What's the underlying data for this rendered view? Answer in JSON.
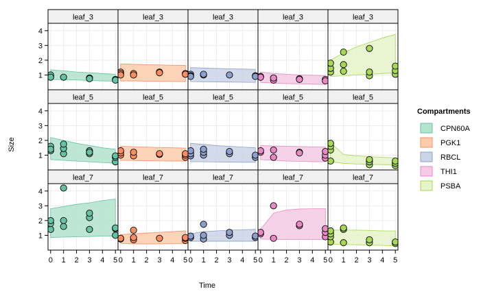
{
  "chart_data": {
    "type": "scatter",
    "xlabel": "Time",
    "ylabel": "Size",
    "xlim": [
      -0.2,
      5.2
    ],
    "ylim": [
      0,
      4.5
    ],
    "x_ticks": [
      0,
      1,
      2,
      3,
      4,
      5
    ],
    "y_ticks": [
      1,
      2,
      3,
      4
    ],
    "grid": true,
    "rows": [
      "leaf_3",
      "leaf_5",
      "leaf_7"
    ],
    "columns": [
      "CPN60A",
      "PGK1",
      "RBCL",
      "THI1",
      "PSBA"
    ],
    "legend": {
      "title": "Compartments",
      "position": "right",
      "items": [
        {
          "label": "CPN60A",
          "fill": "#b3e2cd",
          "stroke": "#66c2a5"
        },
        {
          "label": "PGK1",
          "fill": "#fdcdac",
          "stroke": "#fc8d62"
        },
        {
          "label": "RBCL",
          "fill": "#cbd5e8",
          "stroke": "#8da0cb"
        },
        {
          "label": "THI1",
          "fill": "#f4cae4",
          "stroke": "#e78ac3"
        },
        {
          "label": "PSBA",
          "fill": "#e6f5c9",
          "stroke": "#a6d854"
        }
      ]
    },
    "point_colors": [
      "#66c2a5",
      "#fc8d62",
      "#8da0cb",
      "#e78ac3",
      "#a6d854"
    ],
    "panels": [
      {
        "row": 0,
        "col": 0,
        "points": [
          [
            0,
            0.9
          ],
          [
            0,
            1.0
          ],
          [
            0,
            0.85
          ],
          [
            1,
            0.85
          ],
          [
            3,
            0.8
          ],
          [
            3,
            0.75
          ],
          [
            5,
            0.7
          ],
          [
            5,
            0.65
          ]
        ],
        "band": [
          [
            0,
            0.7,
            1.35
          ],
          [
            1,
            0.68,
            1.28
          ],
          [
            2,
            0.66,
            1.2
          ],
          [
            3,
            0.63,
            1.15
          ],
          [
            4,
            0.6,
            1.1
          ],
          [
            5,
            0.58,
            1.05
          ]
        ]
      },
      {
        "row": 0,
        "col": 1,
        "points": [
          [
            0,
            1.2
          ],
          [
            0,
            1.1
          ],
          [
            0,
            1.0
          ],
          [
            1,
            1.1
          ],
          [
            1,
            1.0
          ],
          [
            3,
            1.2
          ],
          [
            3,
            1.15
          ],
          [
            5,
            1.1
          ],
          [
            5,
            1.05
          ]
        ],
        "band": [
          [
            0,
            0.6,
            1.75
          ],
          [
            1,
            0.6,
            1.72
          ],
          [
            2,
            0.58,
            1.7
          ],
          [
            3,
            0.57,
            1.68
          ],
          [
            4,
            0.56,
            1.66
          ],
          [
            5,
            0.55,
            1.65
          ]
        ]
      },
      {
        "row": 0,
        "col": 2,
        "points": [
          [
            0,
            1.05
          ],
          [
            0,
            0.95
          ],
          [
            0,
            0.9
          ],
          [
            1,
            1.0
          ],
          [
            1,
            1.05
          ],
          [
            3,
            1.0
          ],
          [
            5,
            0.95
          ],
          [
            5,
            0.9
          ]
        ],
        "band": [
          [
            0,
            0.55,
            1.5
          ],
          [
            1,
            0.54,
            1.47
          ],
          [
            2,
            0.53,
            1.44
          ],
          [
            3,
            0.52,
            1.42
          ],
          [
            4,
            0.51,
            1.4
          ],
          [
            5,
            0.5,
            1.38
          ]
        ]
      },
      {
        "row": 0,
        "col": 3,
        "points": [
          [
            0,
            0.9
          ],
          [
            0,
            0.85
          ],
          [
            1,
            0.65
          ],
          [
            1,
            0.8
          ],
          [
            3,
            0.75
          ],
          [
            3,
            0.7
          ],
          [
            5,
            0.7
          ],
          [
            5,
            0.6
          ]
        ],
        "band": [
          [
            0,
            0.5,
            1.2
          ],
          [
            1,
            0.45,
            1.1
          ],
          [
            2,
            0.42,
            1.05
          ],
          [
            3,
            0.4,
            1.0
          ],
          [
            4,
            0.38,
            0.98
          ],
          [
            5,
            0.36,
            0.95
          ]
        ]
      },
      {
        "row": 0,
        "col": 4,
        "points": [
          [
            0,
            1.2
          ],
          [
            0,
            1.45
          ],
          [
            0,
            1.8
          ],
          [
            1,
            1.25
          ],
          [
            1,
            1.7
          ],
          [
            1,
            2.55
          ],
          [
            3,
            0.95
          ],
          [
            3,
            1.2
          ],
          [
            3,
            2.8
          ],
          [
            5,
            1.05
          ],
          [
            5,
            1.3
          ],
          [
            5,
            1.6
          ]
        ],
        "band": [
          [
            0,
            0.9,
            2.0
          ],
          [
            1,
            0.95,
            2.5
          ],
          [
            2,
            1.0,
            2.9
          ],
          [
            3,
            1.05,
            3.2
          ],
          [
            4,
            1.1,
            3.5
          ],
          [
            5,
            1.15,
            3.75
          ]
        ]
      },
      {
        "row": 1,
        "col": 0,
        "points": [
          [
            0,
            1.3
          ],
          [
            0,
            1.6
          ],
          [
            0,
            1.4
          ],
          [
            1,
            1.1
          ],
          [
            1,
            1.45
          ],
          [
            1,
            1.75
          ],
          [
            3,
            1.1
          ],
          [
            3,
            1.3
          ],
          [
            3,
            1.2
          ],
          [
            5,
            0.55
          ],
          [
            5,
            0.85
          ],
          [
            5,
            0.95
          ]
        ],
        "band": [
          [
            0,
            0.7,
            2.2
          ],
          [
            1,
            0.65,
            2.0
          ],
          [
            2,
            0.6,
            1.8
          ],
          [
            3,
            0.55,
            1.65
          ],
          [
            4,
            0.5,
            1.5
          ],
          [
            5,
            0.45,
            1.4
          ]
        ]
      },
      {
        "row": 1,
        "col": 1,
        "points": [
          [
            0,
            1.0
          ],
          [
            0,
            1.15
          ],
          [
            0,
            1.3
          ],
          [
            1,
            0.95
          ],
          [
            1,
            1.2
          ],
          [
            3,
            1.05
          ],
          [
            3,
            1.1
          ],
          [
            5,
            0.85
          ],
          [
            5,
            1.0
          ],
          [
            5,
            1.1
          ]
        ],
        "band": [
          [
            0,
            0.65,
            1.6
          ],
          [
            1,
            0.64,
            1.57
          ],
          [
            2,
            0.62,
            1.55
          ],
          [
            3,
            0.61,
            1.52
          ],
          [
            4,
            0.6,
            1.5
          ],
          [
            5,
            0.6,
            1.48
          ]
        ]
      },
      {
        "row": 1,
        "col": 2,
        "points": [
          [
            0,
            0.95
          ],
          [
            0,
            1.1
          ],
          [
            0,
            1.3
          ],
          [
            1,
            1.0
          ],
          [
            1,
            1.2
          ],
          [
            1,
            1.4
          ],
          [
            3,
            1.1
          ],
          [
            3,
            1.25
          ],
          [
            5,
            0.85
          ],
          [
            5,
            1.0
          ]
        ],
        "band": [
          [
            0,
            0.55,
            1.8
          ],
          [
            1,
            0.55,
            1.72
          ],
          [
            2,
            0.54,
            1.65
          ],
          [
            3,
            0.53,
            1.6
          ],
          [
            4,
            0.52,
            1.55
          ],
          [
            5,
            0.52,
            1.5
          ]
        ]
      },
      {
        "row": 1,
        "col": 3,
        "points": [
          [
            0,
            1.2
          ],
          [
            0,
            1.3
          ],
          [
            1,
            0.85
          ],
          [
            1,
            1.35
          ],
          [
            3,
            1.2
          ],
          [
            3,
            1.15
          ],
          [
            5,
            0.8
          ],
          [
            5,
            1.0
          ],
          [
            5,
            1.25
          ]
        ],
        "band": [
          [
            0,
            0.7,
            1.65
          ],
          [
            1,
            0.65,
            1.62
          ],
          [
            2,
            0.6,
            1.6
          ],
          [
            3,
            0.58,
            1.58
          ],
          [
            4,
            0.56,
            1.56
          ],
          [
            5,
            0.55,
            1.55
          ]
        ]
      },
      {
        "row": 1,
        "col": 4,
        "points": [
          [
            0,
            0.6
          ],
          [
            0,
            1.35
          ],
          [
            0,
            1.6
          ],
          [
            0,
            1.8
          ],
          [
            3,
            0.35
          ],
          [
            3,
            0.55
          ],
          [
            3,
            0.7
          ],
          [
            5,
            0.3
          ],
          [
            5,
            0.45
          ],
          [
            5,
            0.6
          ]
        ],
        "band": [
          [
            0,
            0.55,
            1.85
          ],
          [
            1,
            0.45,
            1.05
          ],
          [
            2,
            0.4,
            0.95
          ],
          [
            3,
            0.38,
            0.9
          ],
          [
            4,
            0.36,
            0.85
          ],
          [
            5,
            0.35,
            0.82
          ]
        ]
      },
      {
        "row": 2,
        "col": 0,
        "points": [
          [
            0,
            1.4
          ],
          [
            0,
            1.8
          ],
          [
            0,
            2.0
          ],
          [
            1,
            1.6
          ],
          [
            1,
            2.0
          ],
          [
            1,
            4.2
          ],
          [
            3,
            1.4
          ],
          [
            3,
            2.2
          ],
          [
            3,
            2.5
          ],
          [
            5,
            1.0
          ],
          [
            5,
            1.45
          ],
          [
            5,
            1.5
          ]
        ],
        "band": [
          [
            0,
            0.85,
            2.8
          ],
          [
            1,
            0.88,
            2.95
          ],
          [
            2,
            0.9,
            3.1
          ],
          [
            3,
            0.92,
            3.2
          ],
          [
            4,
            0.95,
            3.35
          ],
          [
            5,
            0.95,
            3.45
          ]
        ]
      },
      {
        "row": 2,
        "col": 1,
        "points": [
          [
            0,
            0.75
          ],
          [
            0,
            0.8
          ],
          [
            1,
            0.7
          ],
          [
            1,
            0.85
          ],
          [
            1,
            1.35
          ],
          [
            3,
            0.8
          ],
          [
            5,
            0.65
          ],
          [
            5,
            0.8
          ],
          [
            5,
            0.85
          ]
        ],
        "band": [
          [
            0,
            0.45,
            1.05
          ],
          [
            1,
            0.42,
            1.1
          ],
          [
            2,
            0.42,
            1.15
          ],
          [
            3,
            0.42,
            1.2
          ],
          [
            4,
            0.43,
            1.25
          ],
          [
            5,
            0.43,
            1.3
          ]
        ]
      },
      {
        "row": 2,
        "col": 2,
        "points": [
          [
            0,
            0.85
          ],
          [
            0,
            0.95
          ],
          [
            1,
            0.75
          ],
          [
            1,
            1.0
          ],
          [
            1,
            1.75
          ],
          [
            3,
            1.0
          ],
          [
            3,
            1.2
          ],
          [
            5,
            0.85
          ],
          [
            5,
            0.95
          ]
        ],
        "band": [
          [
            0,
            0.6,
            1.1
          ],
          [
            1,
            0.6,
            1.25
          ],
          [
            2,
            0.6,
            1.3
          ],
          [
            3,
            0.6,
            1.35
          ],
          [
            4,
            0.6,
            1.38
          ],
          [
            5,
            0.6,
            1.4
          ]
        ]
      },
      {
        "row": 2,
        "col": 3,
        "points": [
          [
            0,
            1.1
          ],
          [
            0,
            1.2
          ],
          [
            1,
            0.8
          ],
          [
            1,
            3.0
          ],
          [
            3,
            1.65
          ],
          [
            3,
            1.75
          ],
          [
            5,
            0.9
          ],
          [
            5,
            1.2
          ],
          [
            5,
            1.45
          ]
        ],
        "band": [
          [
            0,
            0.75,
            1.4
          ],
          [
            1,
            0.72,
            2.5
          ],
          [
            2,
            0.72,
            2.72
          ],
          [
            3,
            0.72,
            2.78
          ],
          [
            4,
            0.72,
            2.8
          ],
          [
            5,
            0.72,
            2.8
          ]
        ]
      },
      {
        "row": 2,
        "col": 4,
        "points": [
          [
            0,
            0.55
          ],
          [
            0,
            0.9
          ],
          [
            0,
            1.1
          ],
          [
            0,
            1.3
          ],
          [
            1,
            0.5
          ],
          [
            1,
            1.4
          ],
          [
            1,
            1.5
          ],
          [
            3,
            0.5
          ],
          [
            3,
            0.7
          ],
          [
            5,
            0.45
          ],
          [
            5,
            0.55
          ]
        ],
        "band": [
          [
            0,
            0.4,
            1.35
          ],
          [
            1,
            0.38,
            1.35
          ],
          [
            2,
            0.36,
            1.35
          ],
          [
            3,
            0.34,
            1.33
          ],
          [
            4,
            0.32,
            1.3
          ],
          [
            5,
            0.3,
            1.3
          ]
        ]
      }
    ]
  }
}
